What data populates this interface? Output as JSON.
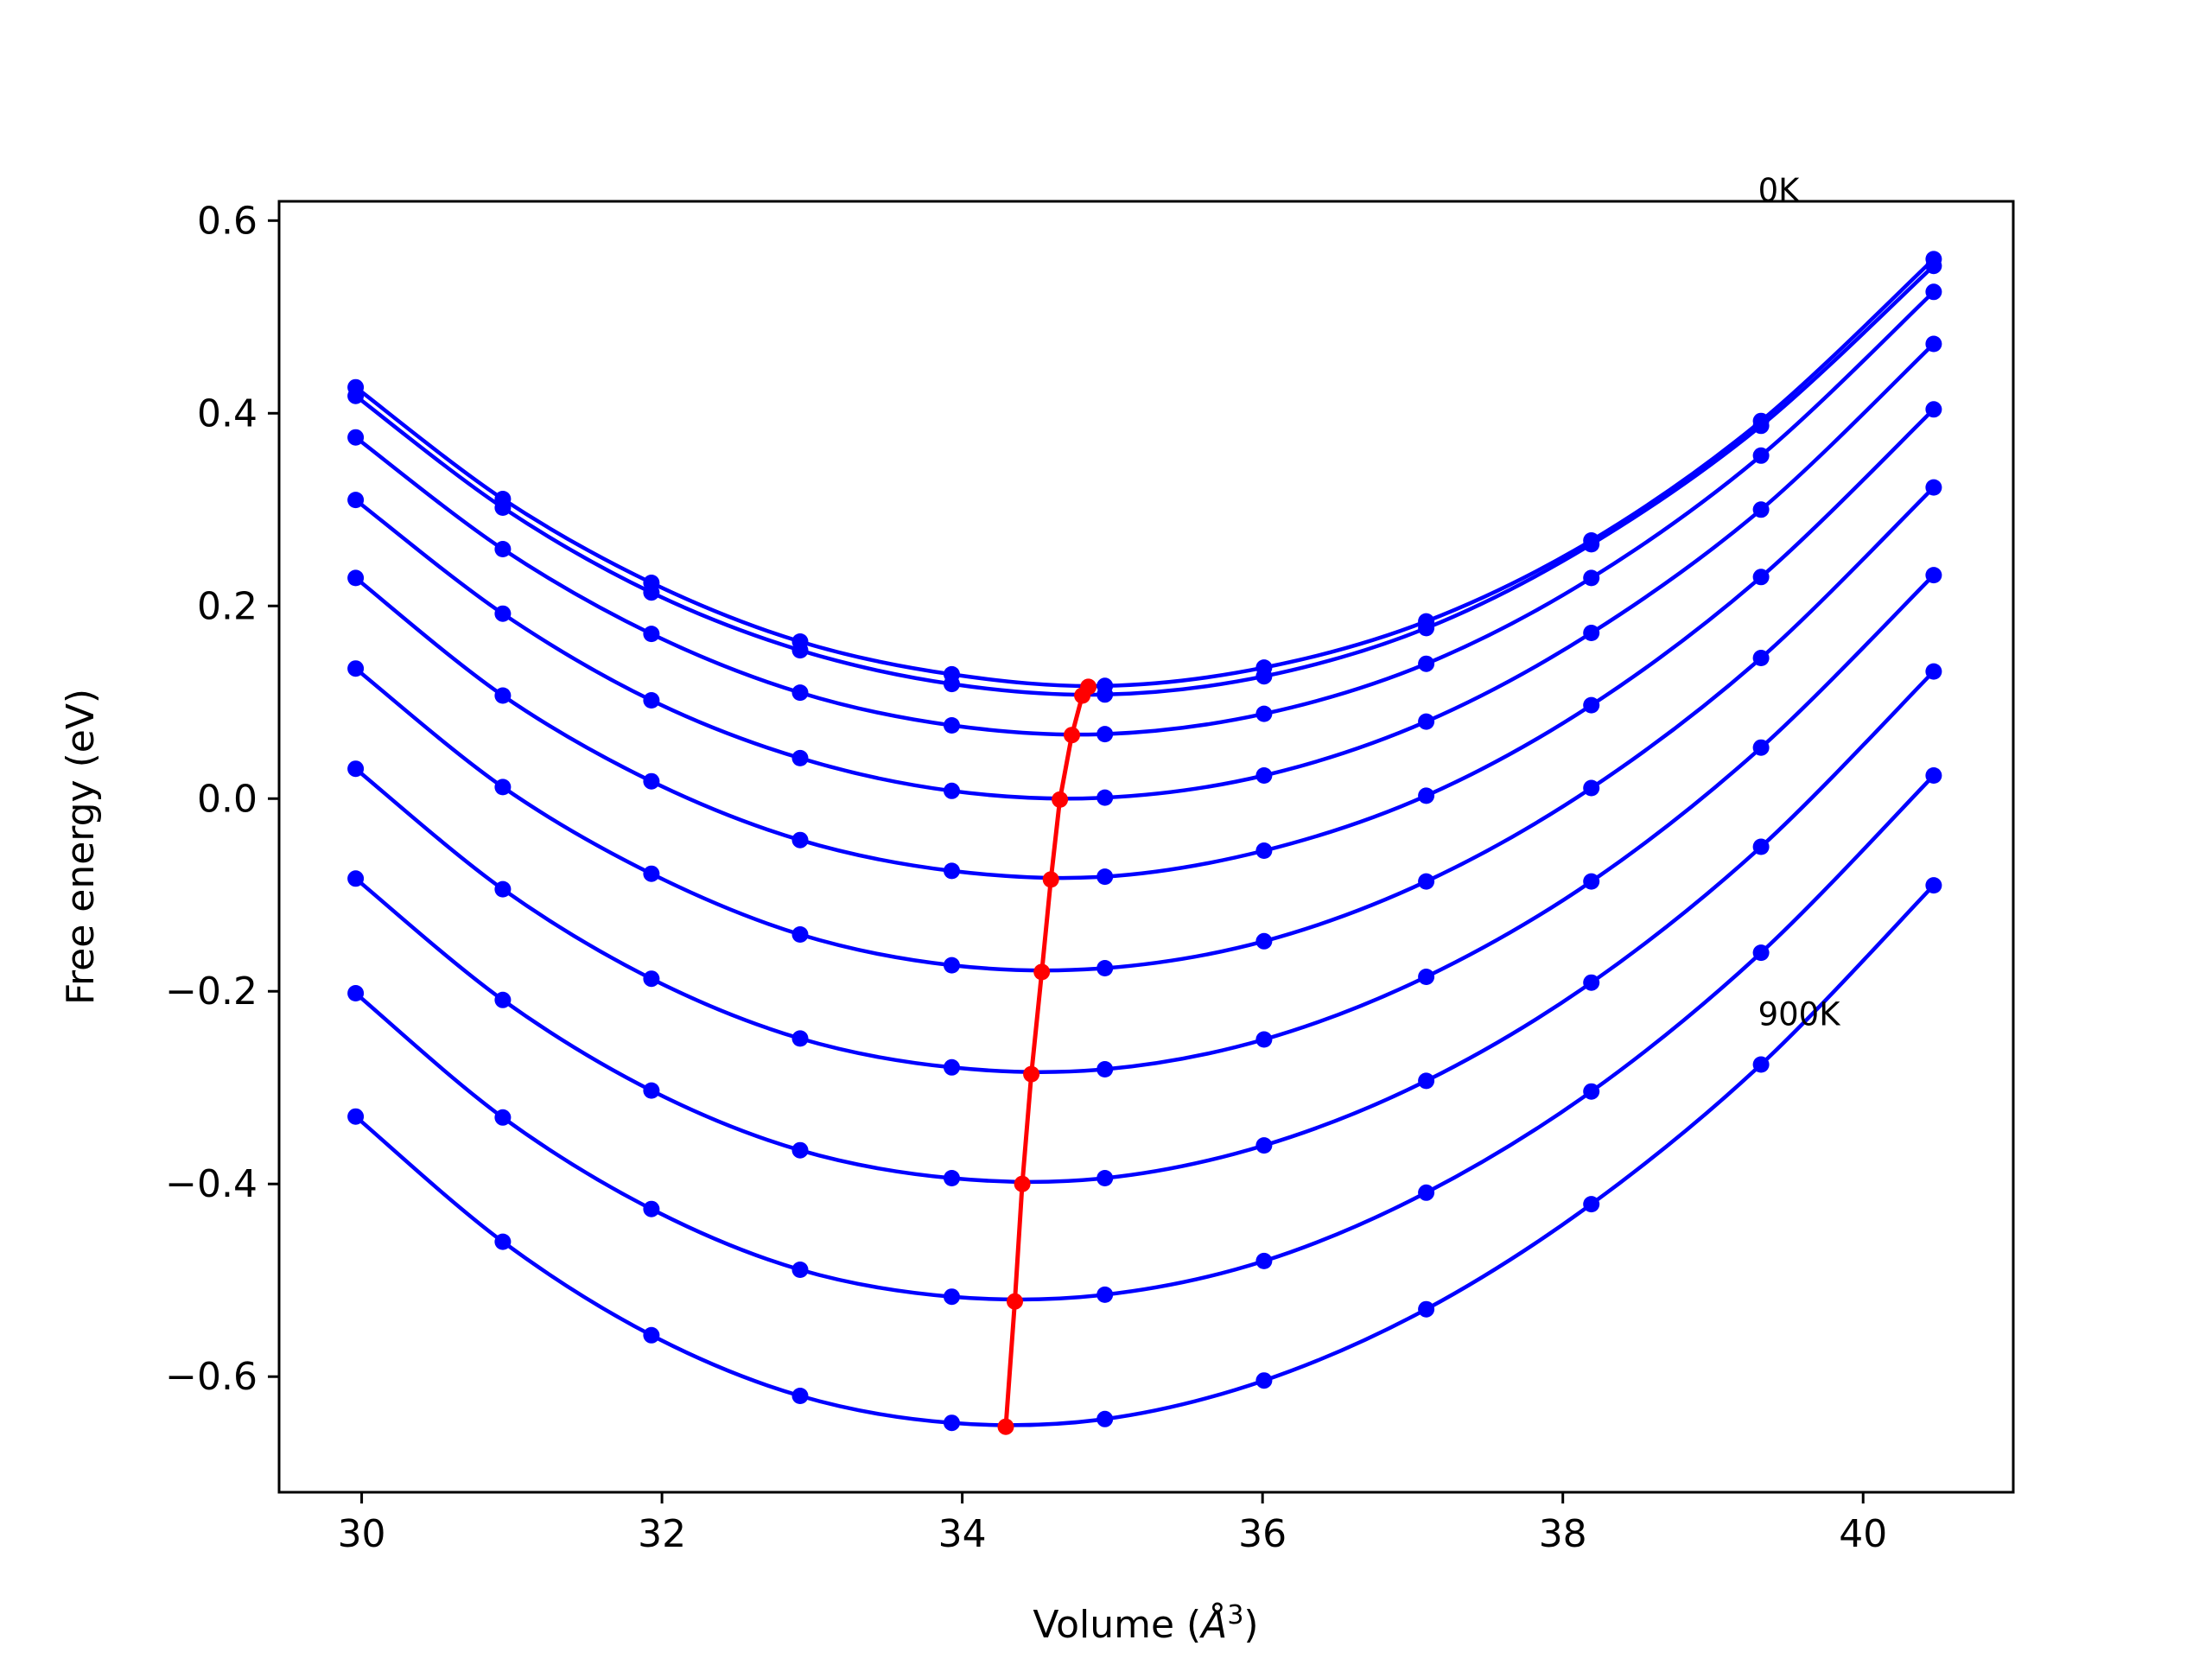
{
  "chart_data": {
    "type": "line",
    "title": "",
    "xlabel": "Volume (",
    "xlabel_unit": "Å",
    "xlabel_sup": "3",
    "xlabel_close": ")",
    "ylabel": "Free energy (eV)",
    "xlim": [
      29.45,
      41.0
    ],
    "ylim": [
      -0.72,
      0.62
    ],
    "xticks": [
      30,
      32,
      34,
      36,
      38,
      40
    ],
    "yticks": [
      0.6,
      0.4,
      0.2,
      0.0,
      -0.2,
      -0.4,
      -0.6
    ],
    "ytick_labels": [
      "0.6",
      "0.4",
      "0.2",
      "0.0",
      "−0.2",
      "−0.4",
      "−0.6"
    ],
    "grid": false,
    "colors": {
      "curves": "#0000ff",
      "minimum_line": "#ff0000",
      "axes": "#000000"
    },
    "x": [
      29.96,
      30.94,
      31.93,
      32.92,
      33.93,
      34.95,
      36.01,
      37.09,
      38.19,
      39.32,
      40.47
    ],
    "series": [
      {
        "values": [
          0.427,
          0.311,
          0.224,
          0.163,
          0.129,
          0.117,
          0.136,
          0.184,
          0.268,
          0.392,
          0.56
        ]
      },
      {
        "values": [
          0.418,
          0.302,
          0.214,
          0.154,
          0.119,
          0.108,
          0.127,
          0.177,
          0.264,
          0.387,
          0.553
        ]
      },
      {
        "values": [
          0.375,
          0.259,
          0.171,
          0.11,
          0.076,
          0.067,
          0.088,
          0.14,
          0.229,
          0.356,
          0.526
        ]
      },
      {
        "values": [
          0.31,
          0.192,
          0.102,
          0.042,
          0.008,
          0.001,
          0.024,
          0.08,
          0.172,
          0.3,
          0.472
        ]
      },
      {
        "values": [
          0.229,
          0.107,
          0.018,
          -0.043,
          -0.075,
          -0.081,
          -0.054,
          0.003,
          0.097,
          0.23,
          0.404
        ]
      },
      {
        "values": [
          0.135,
          0.012,
          -0.078,
          -0.141,
          -0.173,
          -0.176,
          -0.148,
          -0.086,
          0.011,
          0.146,
          0.323
        ]
      },
      {
        "values": [
          0.031,
          -0.094,
          -0.187,
          -0.249,
          -0.279,
          -0.281,
          -0.25,
          -0.185,
          -0.086,
          0.053,
          0.232
        ]
      },
      {
        "values": [
          -0.083,
          -0.209,
          -0.303,
          -0.365,
          -0.394,
          -0.394,
          -0.36,
          -0.293,
          -0.191,
          -0.05,
          0.132
        ]
      },
      {
        "values": [
          -0.202,
          -0.331,
          -0.426,
          -0.489,
          -0.517,
          -0.515,
          -0.48,
          -0.409,
          -0.304,
          -0.16,
          0.024
        ]
      },
      {
        "values": [
          -0.33,
          -0.46,
          -0.557,
          -0.62,
          -0.648,
          -0.644,
          -0.604,
          -0.53,
          -0.421,
          -0.276,
          -0.09
        ]
      }
    ],
    "minima": {
      "x": [
        34.84,
        34.8,
        34.73,
        34.65,
        34.59,
        34.53,
        34.46,
        34.4,
        34.35,
        34.29
      ],
      "y": [
        0.116,
        0.107,
        0.066,
        -0.001,
        -0.084,
        -0.18,
        -0.286,
        -0.4,
        -0.522,
        -0.652
      ]
    },
    "annotations": [
      {
        "text": "0K",
        "x": 39.3,
        "y": 0.62
      },
      {
        "text": "900K",
        "x": 39.3,
        "y": -0.235
      }
    ]
  }
}
